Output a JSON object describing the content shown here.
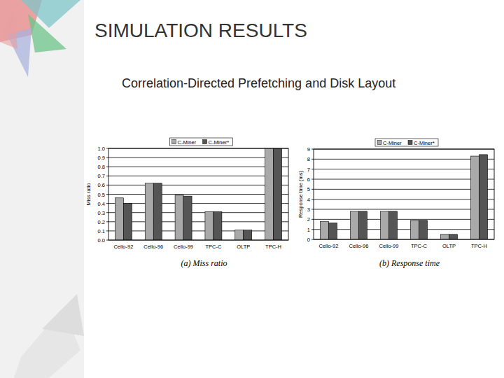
{
  "slide": {
    "title": "SIMULATION RESULTS",
    "subtitle": "Correlation-Directed Prefetching and Disk Layout"
  },
  "chart_data": [
    {
      "type": "bar",
      "title": "(a) Miss ratio",
      "y_label": "Miss ratio",
      "categories": [
        "Cello-92",
        "Cello-96",
        "Cello-99",
        "TPC-C",
        "OLTP",
        "TPC-H"
      ],
      "series": [
        {
          "name": "C-Miner",
          "color": "#a9a9a9",
          "values": [
            0.46,
            0.62,
            0.49,
            0.31,
            0.11,
            1.0
          ]
        },
        {
          "name": "C-Miner*",
          "color": "#555555",
          "values": [
            0.4,
            0.62,
            0.48,
            0.31,
            0.11,
            1.0
          ]
        }
      ],
      "ylim": [
        0,
        1
      ],
      "yticks": [
        {
          "value": 0,
          "label": "0.0"
        },
        0.1,
        0.2,
        0.3,
        0.4,
        0.5,
        0.6,
        0.7,
        0.8,
        0.9,
        {
          "value": 1,
          "label": "1.0"
        }
      ],
      "grid": true,
      "legend": "top"
    },
    {
      "type": "bar",
      "title": "(b) Response time",
      "y_label": "Response time (ms)",
      "categories": [
        "Cello-92",
        "Cello-96",
        "Cello-99",
        "TPC-C",
        "OLTP",
        "TPC-H"
      ],
      "series": [
        {
          "name": "C-Miner",
          "color": "#a9a9a9",
          "values": [
            1.8,
            2.8,
            2.8,
            1.9,
            0.5,
            8.3
          ]
        },
        {
          "name": "C-Miner*",
          "color": "#555555",
          "values": [
            1.65,
            2.8,
            2.8,
            1.9,
            0.5,
            8.45
          ]
        }
      ],
      "ylim": [
        0,
        9
      ],
      "yticks": [
        0,
        1,
        2,
        3,
        4,
        5,
        6,
        7,
        8,
        9
      ],
      "grid": true,
      "legend": "top"
    }
  ]
}
